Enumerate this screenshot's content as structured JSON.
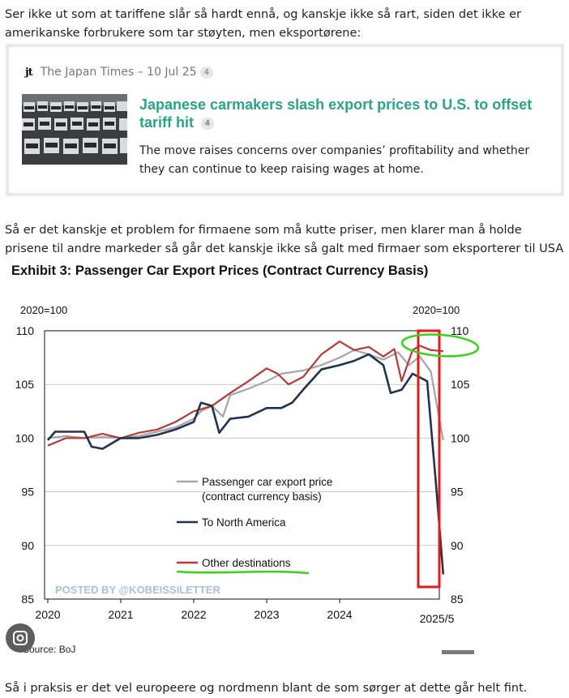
{
  "post": {
    "para1": "Ser ikke ut som at tariffene slår så hardt ennå, og kanskje ikke så rart, siden det ikke er amerikanske forbrukere som tar støyten, men eksportørene:",
    "para2": "Så er det kanskje et problem for firmaene som må kutte priser, men klarer man å holde prisene til andre markeder så går det kanskje ikke så galt med firmaer som eksporterer til USA",
    "para3": "Så i praksis er det vel europeere og nordmenn blant de som sørger at dette går helt fint."
  },
  "onebox": {
    "favicon": "jt",
    "source": "The Japan Times – 10 Jul 25",
    "source_count": "4",
    "title": "Japanese carmakers slash export prices to U.S. to offset tariff hit",
    "title_count": "4",
    "description": "The move raises concerns over companies’ profitability and whether they can continue to keep raising wages at home."
  },
  "chart_data": {
    "type": "line",
    "title": "Exhibit 3: Passenger Car Export Prices (Contract Currency Basis)",
    "index_label_left": "2020=100",
    "index_label_right": "2020=100",
    "ylim": [
      85,
      110
    ],
    "yticks": [
      "110",
      "105",
      "100",
      "95",
      "90",
      "85"
    ],
    "yticks_right": [
      "110",
      "105",
      "100",
      "95",
      "90",
      "85"
    ],
    "xticks": [
      "2020",
      "2021",
      "2022",
      "2023",
      "2024",
      "2025/5"
    ],
    "source": "Source: BoJ",
    "watermark": "POSTED BY @KOBEISSILETTER",
    "legend_position": "lower-left",
    "series": [
      {
        "name": "Passenger car export price (contract currency basis)",
        "color": "#a6a6a6",
        "x": [
          2020.0,
          2020.25,
          2020.5,
          2020.75,
          2021.0,
          2021.25,
          2021.5,
          2021.75,
          2022.0,
          2022.1,
          2022.25,
          2022.4,
          2022.5,
          2022.75,
          2023.0,
          2023.2,
          2023.5,
          2023.75,
          2024.0,
          2024.2,
          2024.4,
          2024.6,
          2024.8,
          2024.95,
          2025.1,
          2025.25,
          2025.42
        ],
        "values": [
          100.0,
          100.2,
          100.0,
          100.1,
          100.0,
          100.2,
          100.6,
          101.0,
          101.8,
          102.5,
          103.0,
          102.0,
          104.0,
          104.6,
          105.3,
          106.0,
          106.3,
          106.8,
          107.5,
          108.2,
          107.8,
          107.3,
          108.0,
          106.8,
          107.6,
          106.2,
          99.8
        ]
      },
      {
        "name": "To North America",
        "color": "#1f3450",
        "x": [
          2020.0,
          2020.1,
          2020.25,
          2020.5,
          2020.6,
          2020.75,
          2021.0,
          2021.25,
          2021.5,
          2021.75,
          2022.0,
          2022.1,
          2022.25,
          2022.35,
          2022.5,
          2022.75,
          2023.0,
          2023.2,
          2023.35,
          2023.5,
          2023.75,
          2024.0,
          2024.2,
          2024.4,
          2024.6,
          2024.7,
          2024.85,
          2025.0,
          2025.2,
          2025.33,
          2025.42
        ],
        "values": [
          99.8,
          100.6,
          100.6,
          100.6,
          99.2,
          99.0,
          100.0,
          100.0,
          100.3,
          100.8,
          101.5,
          103.3,
          103.0,
          100.5,
          101.8,
          102.0,
          102.8,
          102.8,
          103.3,
          104.5,
          106.4,
          106.8,
          107.2,
          107.8,
          106.8,
          104.2,
          104.5,
          106.0,
          105.3,
          95.0,
          87.3
        ]
      },
      {
        "name": "Other destinations",
        "color": "#b53a3a",
        "x": [
          2020.0,
          2020.25,
          2020.5,
          2020.75,
          2021.0,
          2021.25,
          2021.5,
          2021.75,
          2022.0,
          2022.25,
          2022.5,
          2022.75,
          2023.0,
          2023.15,
          2023.3,
          2023.5,
          2023.75,
          2024.0,
          2024.2,
          2024.4,
          2024.6,
          2024.75,
          2024.85,
          2025.0,
          2025.1,
          2025.25,
          2025.42
        ],
        "values": [
          99.3,
          100.0,
          100.0,
          100.4,
          100.0,
          100.5,
          100.8,
          101.5,
          102.5,
          103.0,
          104.2,
          105.3,
          106.5,
          106.0,
          105.0,
          105.7,
          107.8,
          109.0,
          108.2,
          108.5,
          107.6,
          108.3,
          105.3,
          108.2,
          108.6,
          108.2,
          108.1
        ]
      }
    ]
  }
}
